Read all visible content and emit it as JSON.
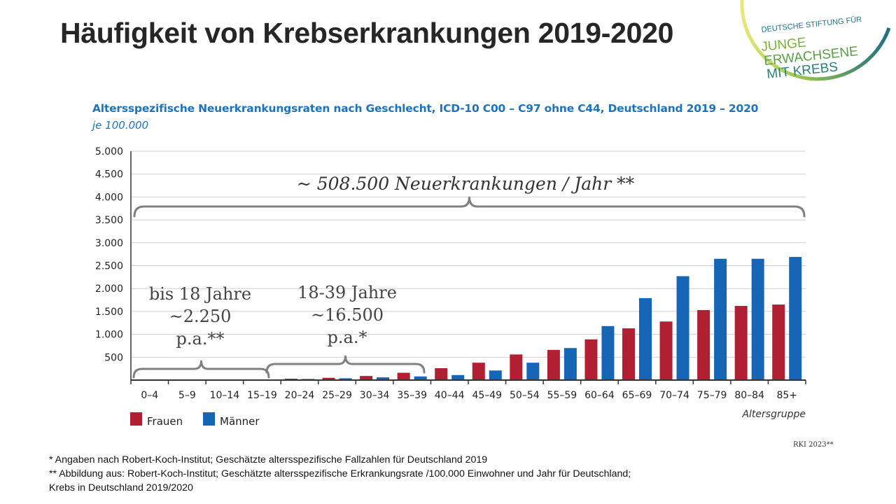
{
  "title": "Häufigkeit von Krebserkrankungen 2019-2020",
  "logo": {
    "line1": "DEUTSCHE STIFTUNG FÜR",
    "line2": "JUNGE",
    "line3": "ERWACHSENE",
    "line4": "MIT KREBS",
    "colors": {
      "teal": "#1f6f86",
      "green": "#7ab03c",
      "yellow": "#d7d84a"
    }
  },
  "footnotes": {
    "line1": "* Angaben nach Robert-Koch-Institut;  Geschätzte altersspezifische  Fallzahlen  für Deutschland   2019",
    "line2": "** Abbildung aus: Robert-Koch-Institut;  Geschätzte  altersspezifische  Erkrankungsrate  /100.000 Einwohner  und Jahr für Deutschland;",
    "line3": "Krebs in Deutschland  2019/2020"
  },
  "source": "RKI 2023**",
  "chart_data": {
    "type": "bar",
    "title": "Altersspezifische Neuerkrankungsraten nach Geschlecht, ICD-10 C00 – C97 ohne C44, Deutschland 2019 – 2020",
    "subtitle": "je 100.000",
    "xlabel": "Altersgruppe",
    "ylabel": "",
    "ylim": [
      0,
      5000
    ],
    "yticks": [
      500,
      1000,
      1500,
      2000,
      2500,
      3000,
      3500,
      4000,
      4500,
      5000
    ],
    "ytick_labels": [
      "500",
      "1.000",
      "1.500",
      "2.000",
      "2.500",
      "3.000",
      "3.500",
      "4.000",
      "4.500",
      "5.000"
    ],
    "grid": true,
    "legend": "bottom-left",
    "categories": [
      "0–4",
      "5–9",
      "10–14",
      "15–19",
      "20–24",
      "25–29",
      "30–34",
      "35–39",
      "40–44",
      "45–49",
      "50–54",
      "55–59",
      "60–64",
      "65–69",
      "70–74",
      "75–79",
      "80–84",
      "85+"
    ],
    "series": [
      {
        "name": "Frauen",
        "color": "#b11f32",
        "values": [
          15,
          10,
          10,
          15,
          30,
          50,
          90,
          160,
          260,
          380,
          560,
          660,
          890,
          1130,
          1280,
          1530,
          1620,
          1650
        ]
      },
      {
        "name": "Männer",
        "color": "#1766b5",
        "values": [
          15,
          10,
          10,
          15,
          25,
          40,
          60,
          80,
          110,
          210,
          380,
          700,
          1180,
          1790,
          2270,
          2650,
          2650,
          2690
        ]
      }
    ],
    "annotations": [
      {
        "text": "~ 508.500 Neuerkrankungen / Jahr **",
        "from": "0–4",
        "to": "85+"
      },
      {
        "lines": [
          "bis 18 Jahre",
          "~2.250",
          "p.a.**"
        ],
        "from": "0–4",
        "to": "15–19"
      },
      {
        "lines": [
          "18-39 Jahre",
          "~16.500",
          "p.a.*"
        ],
        "from": "20–24",
        "to": "35–39"
      }
    ]
  }
}
